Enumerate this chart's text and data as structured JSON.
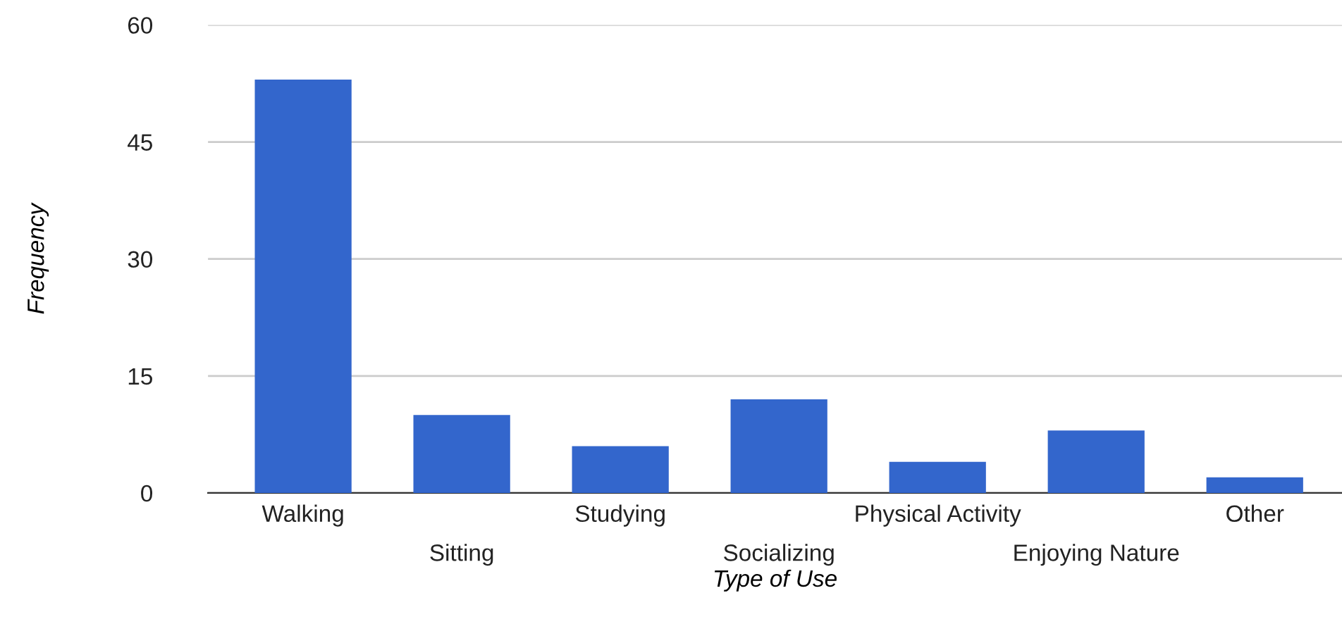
{
  "chart_data": {
    "type": "bar",
    "xlabel": "Type of Use",
    "ylabel": "Frequency",
    "categories": [
      "Walking",
      "Sitting",
      "Studying",
      "Socializing",
      "Physical Activity",
      "Enjoying Nature",
      "Other"
    ],
    "series": [
      {
        "color": "#3366cc",
        "values": [
          53,
          10,
          6,
          12,
          4,
          8,
          2
        ]
      }
    ],
    "ylim": [
      0,
      60
    ],
    "yticks": [
      0,
      15,
      30,
      45,
      60
    ],
    "grid": "y",
    "legend": false
  }
}
